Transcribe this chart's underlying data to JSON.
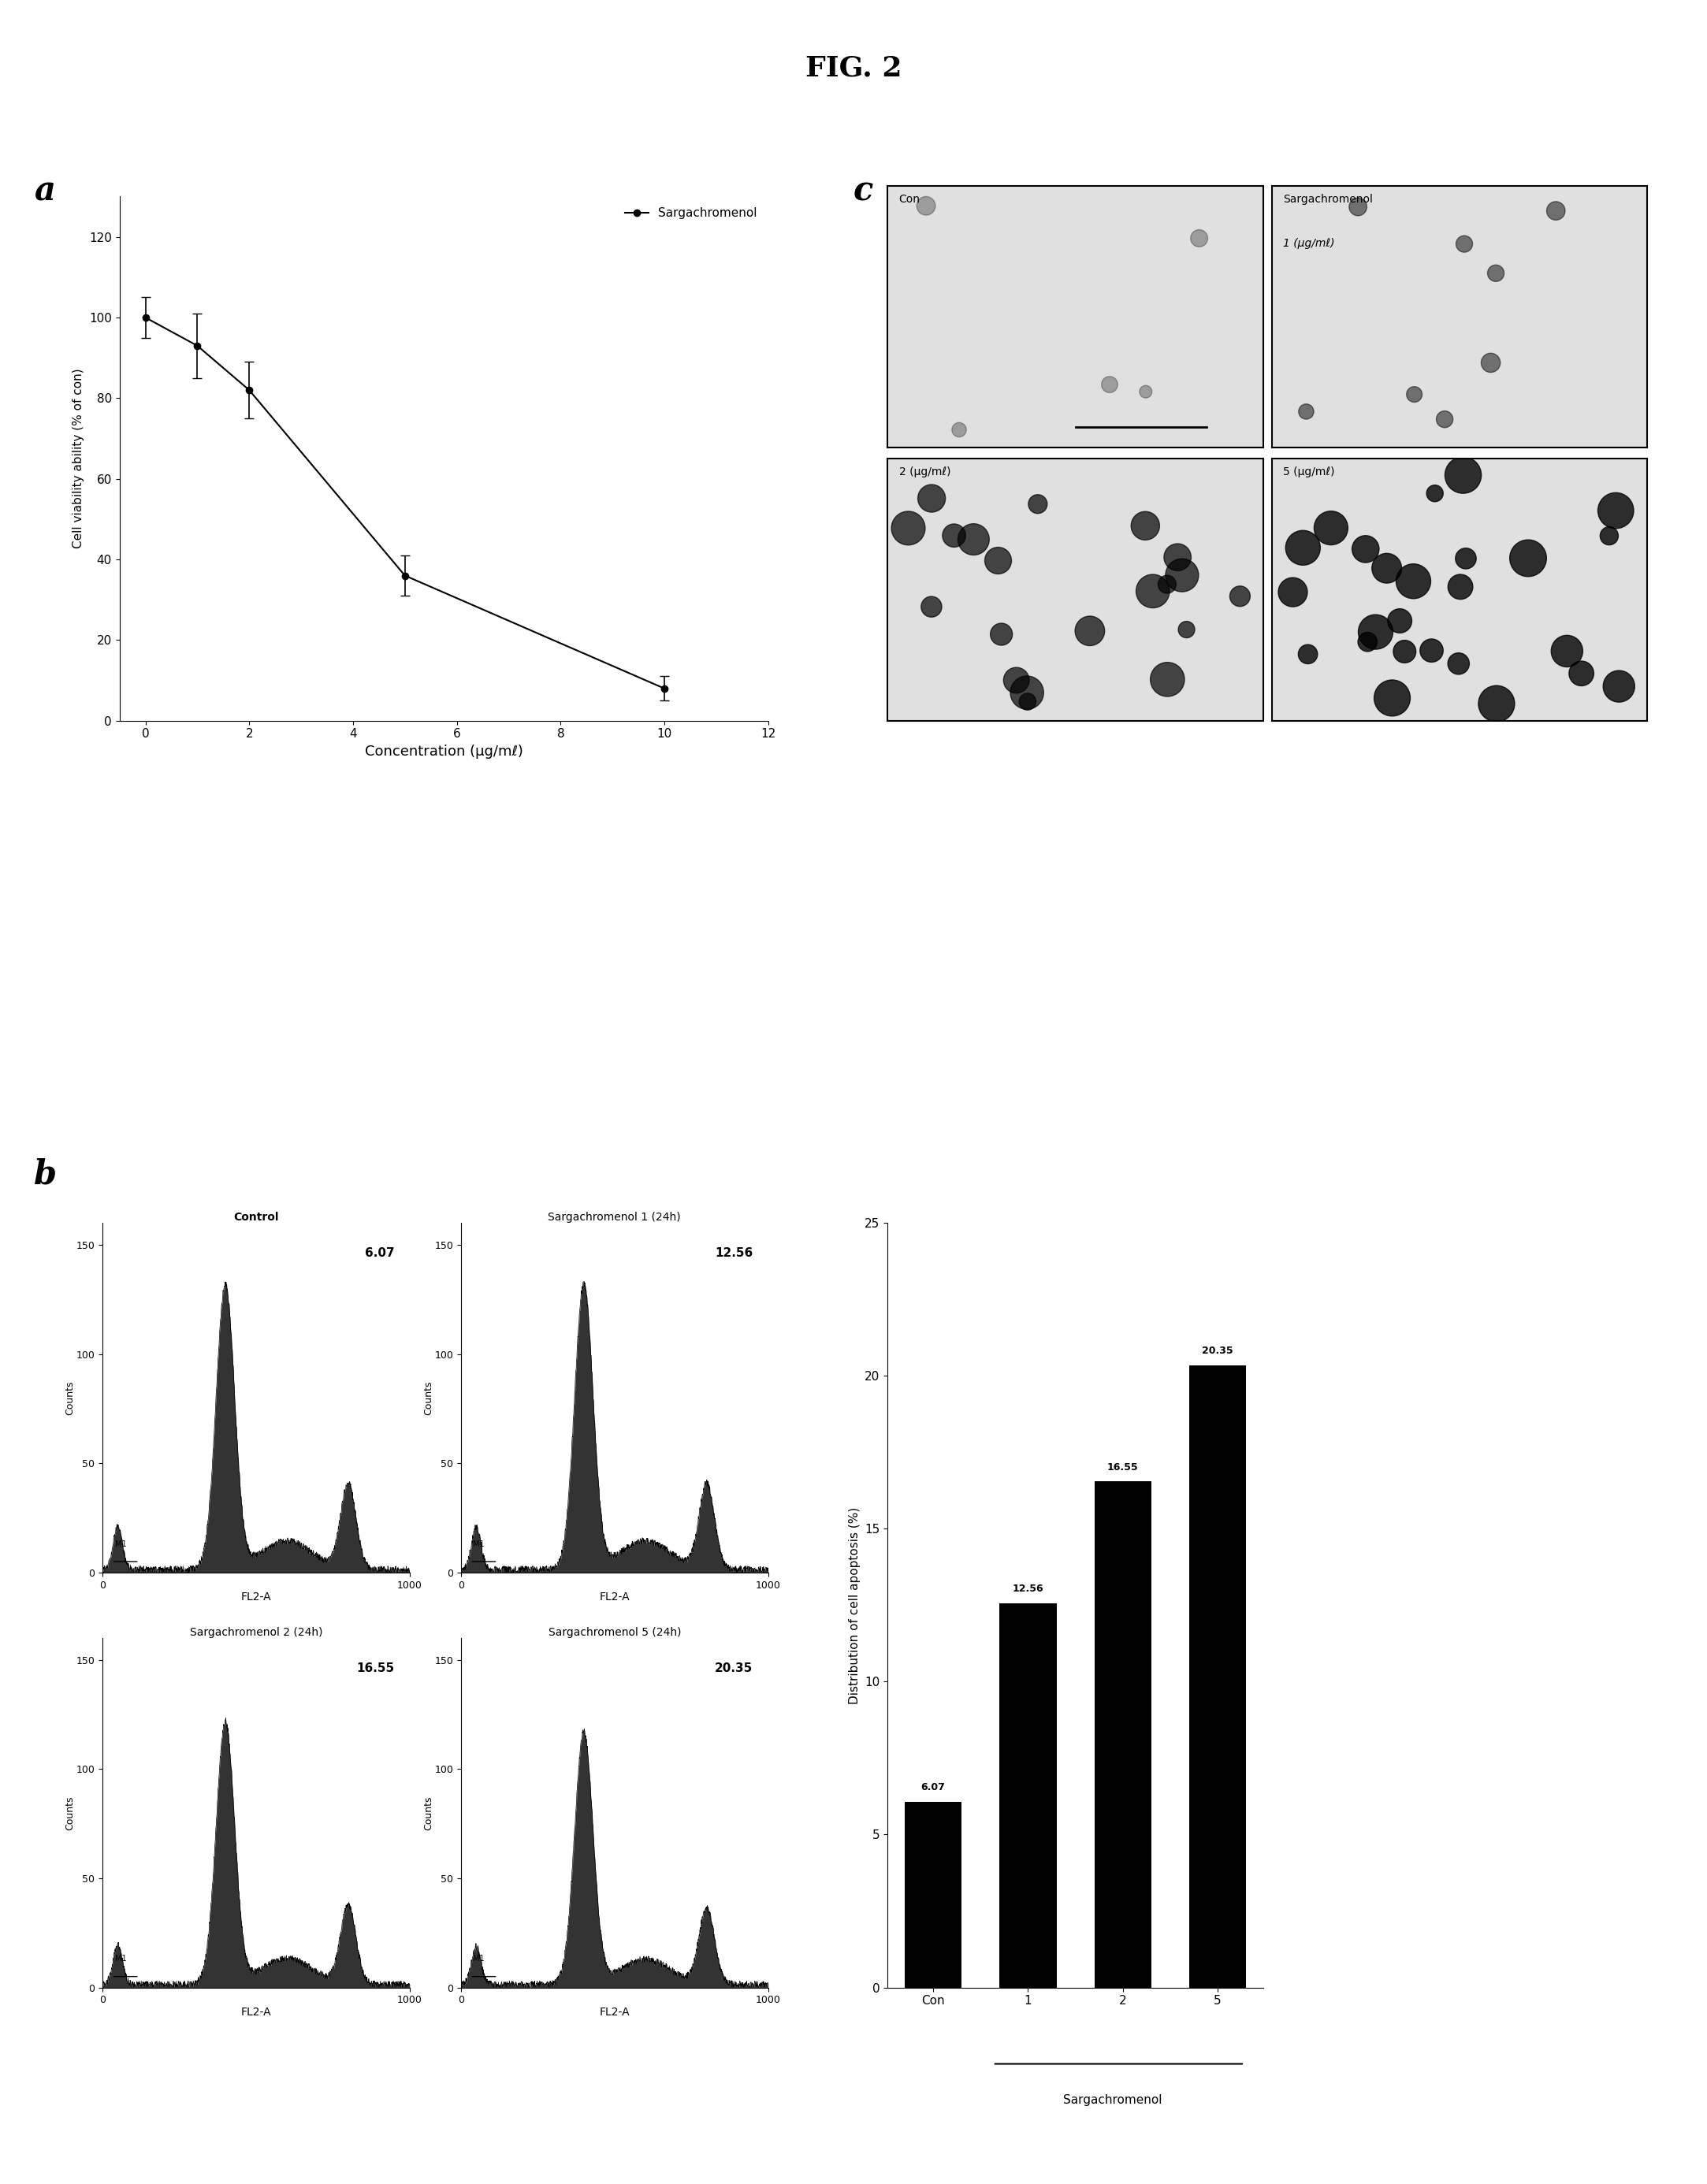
{
  "title": "FIG. 2",
  "panel_labels": [
    "a",
    "b",
    "c"
  ],
  "viability": {
    "x": [
      0,
      1,
      2,
      5,
      10
    ],
    "y": [
      100,
      93,
      82,
      36,
      8
    ],
    "yerr": [
      5,
      8,
      7,
      5,
      3
    ],
    "xlabel": "Concentration (μg/mℓ)",
    "ylabel": "Cell viability ability (% of con)",
    "xlim": [
      -0.5,
      12
    ],
    "ylim": [
      0,
      130
    ],
    "yticks": [
      0,
      20,
      40,
      60,
      80,
      100,
      120
    ],
    "xticks": [
      0,
      2,
      4,
      6,
      8,
      10,
      12
    ],
    "legend_label": "→ Sargachromenol",
    "line_color": "#000000",
    "marker": "o",
    "markersize": 6
  },
  "bar_chart": {
    "categories": [
      "Con",
      "1",
      "2",
      "5"
    ],
    "values": [
      6.07,
      12.56,
      16.55,
      20.35
    ],
    "bar_color": "#000000",
    "xlabel": "Sargachromenol",
    "ylabel": "Distribution of cell apoptosis (%)",
    "ylim": [
      0,
      25
    ],
    "yticks": [
      0,
      5,
      10,
      15,
      20,
      25
    ],
    "value_labels": [
      "6.07",
      "12.56",
      "16.55",
      "20.35"
    ]
  },
  "flow_cytometry": {
    "panels": [
      {
        "title": "Control",
        "value": "6.07",
        "bold_title": true
      },
      {
        "title": "Sargachromenol 1 (24h)",
        "value": "12.56",
        "bold_title": false
      },
      {
        "title": "Sargachromenol 2 (24h)",
        "value": "16.55",
        "bold_title": false
      },
      {
        "title": "Sargachromenol 5 (24h)",
        "value": "20.35",
        "bold_title": false
      }
    ],
    "xlabel": "FL2-A",
    "ylabel": "Counts",
    "xlim": [
      0,
      1000
    ],
    "ylim": [
      0,
      150
    ],
    "yticks": [
      0,
      50,
      100,
      150
    ]
  },
  "microscopy_labels": [
    "Con",
    "Sargachromenol\n1 (μg/mℓ)",
    "2 (μg/mℓ)",
    "5 (μg/mℓ)"
  ],
  "bg_color": "#ffffff",
  "text_color": "#000000"
}
